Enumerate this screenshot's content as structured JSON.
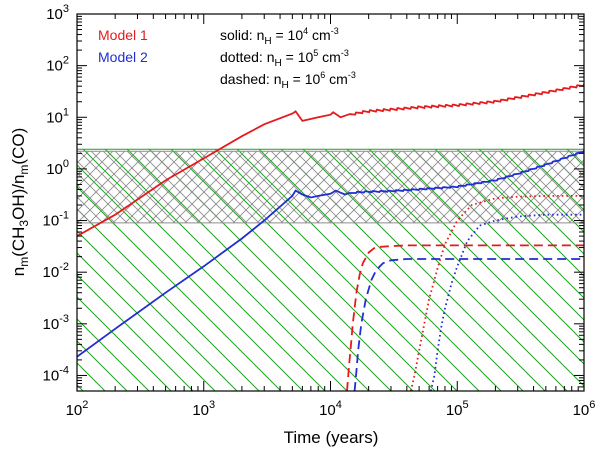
{
  "chart_data": {
    "type": "line",
    "xlabel": "Time (years)",
    "ylabel": "n_m(CH_3OH)/n_m(CO)",
    "xscale": "log",
    "yscale": "log",
    "xlim": [
      100,
      1000000
    ],
    "ylim": [
      5e-05,
      1000
    ],
    "x_ticks": [
      {
        "value": 100,
        "base": "10",
        "exp": "2"
      },
      {
        "value": 1000,
        "base": "10",
        "exp": "3"
      },
      {
        "value": 10000,
        "base": "10",
        "exp": "4"
      },
      {
        "value": 100000,
        "base": "10",
        "exp": "5"
      },
      {
        "value": 1000000,
        "base": "10",
        "exp": "6"
      }
    ],
    "y_ticks": [
      {
        "value": 0.0001,
        "base": "10",
        "exp": "-4"
      },
      {
        "value": 0.001,
        "base": "10",
        "exp": "-3"
      },
      {
        "value": 0.01,
        "base": "10",
        "exp": "-2"
      },
      {
        "value": 0.1,
        "base": "10",
        "exp": "-1"
      },
      {
        "value": 1,
        "base": "10",
        "exp": "0"
      },
      {
        "value": 10,
        "base": "10",
        "exp": "1"
      },
      {
        "value": 100,
        "base": "10",
        "exp": "2"
      },
      {
        "value": 1000,
        "base": "10",
        "exp": "3"
      }
    ],
    "bands": [
      {
        "ymin": 5e-05,
        "ymax": 2.4,
        "color": "#22a022",
        "hatch": "diagonal-down-right"
      },
      {
        "ymin": 0.09,
        "ymax": 2.2,
        "color": "#8c8c8c",
        "hatch": "cross"
      }
    ],
    "legend": {
      "models": [
        {
          "label": "Model 1",
          "color": "#e41a1c"
        },
        {
          "label": "Model 2",
          "color": "#1f2fd0"
        }
      ],
      "styles": [
        {
          "style": "solid",
          "prefix": "solid: n",
          "sub": "H",
          "mid": " = 10",
          "exp": "4",
          "unit": " cm",
          "unit_exp": "-3"
        },
        {
          "style": "dotted",
          "prefix": "dotted: n",
          "sub": "H",
          "mid": " = 10",
          "exp": "5",
          "unit": " cm",
          "unit_exp": "-3"
        },
        {
          "style": "dashed",
          "prefix": "dashed: n",
          "sub": "H",
          "mid": " = 10",
          "exp": "6",
          "unit": " cm",
          "unit_exp": "-3"
        }
      ]
    },
    "series": [
      {
        "name": "Model 1",
        "density": "1e4",
        "color": "#e41a1c",
        "style": "solid",
        "x": [
          100,
          200,
          500,
          1000,
          2000,
          3000,
          5000,
          5300,
          6000,
          8000,
          10000,
          10500,
          12000,
          14000,
          16000,
          18000,
          20000,
          30000,
          50000,
          100000,
          200000,
          500000,
          1000000
        ],
        "y": [
          0.05,
          0.13,
          0.6,
          1.6,
          4.3,
          7.3,
          11.8,
          13,
          8.5,
          10,
          11.2,
          12.5,
          10,
          10.9,
          11.8,
          12.5,
          13,
          14,
          15.5,
          17,
          20,
          30,
          42
        ],
        "sawtooth": {
          "from": 14000,
          "to": 1000000,
          "cycles": 34,
          "amplitude": 0.04
        }
      },
      {
        "name": "Model 2",
        "density": "1e4",
        "color": "#1f2fd0",
        "style": "solid",
        "x": [
          100,
          200,
          500,
          1000,
          2000,
          3000,
          5000,
          5300,
          6000,
          7000,
          8000,
          10000,
          11000,
          13000,
          16000,
          20000,
          30000,
          50000,
          100000,
          200000,
          300000,
          500000,
          1000000
        ],
        "y": [
          0.00023,
          0.0008,
          0.004,
          0.013,
          0.045,
          0.1,
          0.3,
          0.38,
          0.32,
          0.28,
          0.3,
          0.33,
          0.38,
          0.32,
          0.35,
          0.36,
          0.37,
          0.4,
          0.45,
          0.6,
          0.8,
          1.2,
          2.2
        ],
        "sawtooth": {
          "from": 14000,
          "to": 1000000,
          "cycles": 30,
          "amplitude": 0.025
        }
      },
      {
        "name": "Model 1",
        "density": "1e5",
        "color": "#e41a1c",
        "style": "dotted",
        "x": [
          43000,
          46000,
          50000,
          55000,
          60000,
          70000,
          80000,
          100000,
          130000,
          200000,
          300000,
          500000,
          1000000
        ],
        "y": [
          5e-05,
          0.0001,
          0.0003,
          0.001,
          0.003,
          0.012,
          0.035,
          0.1,
          0.2,
          0.27,
          0.29,
          0.3,
          0.3
        ]
      },
      {
        "name": "Model 2",
        "density": "1e5",
        "color": "#1f2fd0",
        "style": "dotted",
        "x": [
          62000,
          66000,
          70000,
          75000,
          80000,
          90000,
          100000,
          120000,
          150000,
          200000,
          300000,
          500000,
          1000000
        ],
        "y": [
          5e-05,
          0.0001,
          0.0003,
          0.0009,
          0.002,
          0.006,
          0.013,
          0.04,
          0.08,
          0.1,
          0.12,
          0.13,
          0.13
        ]
      },
      {
        "name": "Model 1",
        "density": "1e6",
        "color": "#e41a1c",
        "style": "dashed",
        "x": [
          13500,
          14000,
          14500,
          15000,
          16000,
          17000,
          18000,
          20000,
          22000,
          25000,
          30000,
          40000,
          60000,
          100000,
          300000,
          1000000
        ],
        "y": [
          5e-05,
          0.00015,
          0.0004,
          0.001,
          0.004,
          0.009,
          0.015,
          0.024,
          0.029,
          0.031,
          0.032,
          0.033,
          0.033,
          0.033,
          0.033,
          0.033
        ]
      },
      {
        "name": "Model 2",
        "density": "1e6",
        "color": "#1f2fd0",
        "style": "dashed",
        "x": [
          15500,
          16000,
          16500,
          17500,
          19000,
          21000,
          23000,
          26000,
          30000,
          40000,
          60000,
          100000,
          300000,
          1000000
        ],
        "y": [
          5e-05,
          0.00012,
          0.0003,
          0.001,
          0.003,
          0.007,
          0.011,
          0.015,
          0.017,
          0.018,
          0.018,
          0.018,
          0.018,
          0.018
        ]
      }
    ]
  }
}
